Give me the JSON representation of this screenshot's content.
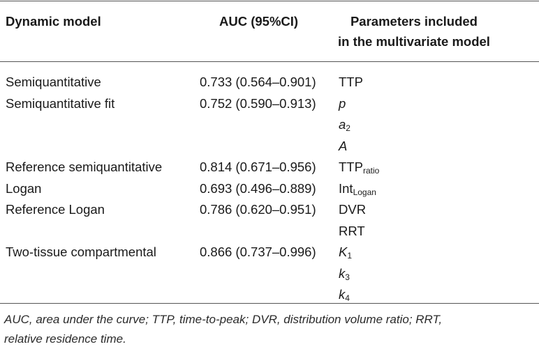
{
  "table": {
    "headers": {
      "model": "Dynamic model",
      "auc": "AUC (95%CI)",
      "params_line1": "Parameters included",
      "params_line2": "in the multivariate model"
    },
    "rows": [
      {
        "model": "Semiquantitative",
        "auc": "0.733 (0.564–0.901)",
        "param": "TTP"
      },
      {
        "model": "Semiquantitative fit",
        "auc": "0.752 (0.590–0.913)",
        "param": "p"
      },
      {
        "model": "",
        "auc": "",
        "param": "a",
        "param_sub": "2"
      },
      {
        "model": "",
        "auc": "",
        "param": "A"
      },
      {
        "model": "Reference semiquantitative",
        "auc": "0.814 (0.671–0.956)",
        "param": "TTP",
        "param_sub": "ratio"
      },
      {
        "model": "Logan",
        "auc": "0.693 (0.496–0.889)",
        "param": "Int",
        "param_sub": "Logan"
      },
      {
        "model": "Reference Logan",
        "auc": "0.786 (0.620–0.951)",
        "param": "DVR"
      },
      {
        "model": "",
        "auc": "",
        "param": "RRT"
      },
      {
        "model": "Two-tissue compartmental",
        "auc": "0.866 (0.737–0.996)",
        "param": "K",
        "param_sub": "1"
      },
      {
        "model": "",
        "auc": "",
        "param": "k",
        "param_sub": "3"
      },
      {
        "model": "",
        "auc": "",
        "param": "k",
        "param_sub": "4"
      }
    ],
    "footnote_line1": "AUC, area under the curve; TTP, time-to-peak; DVR, distribution volume ratio; RRT,",
    "footnote_line2": "relative residence time."
  }
}
